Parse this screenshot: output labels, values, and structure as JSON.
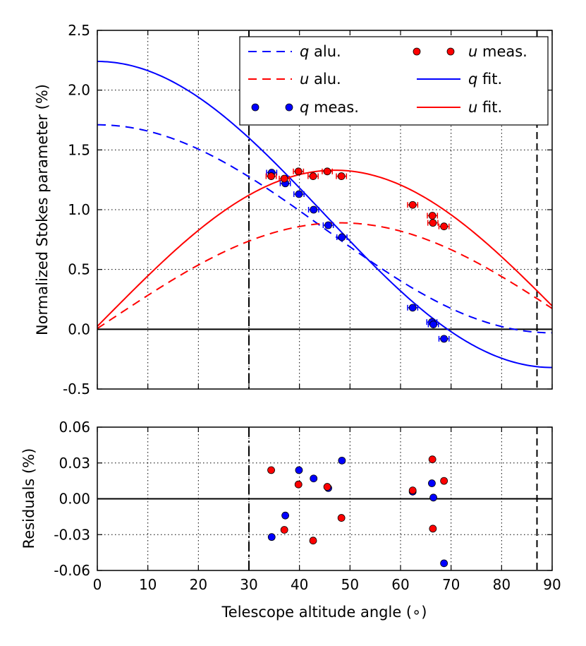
{
  "chart_data": [
    {
      "type": "line",
      "panel": "top",
      "ylabel": "Normalized Stokes parameter (%)",
      "xlim": [
        0,
        90
      ],
      "ylim": [
        -0.5,
        2.5
      ],
      "xticks": [
        0,
        10,
        20,
        30,
        40,
        50,
        60,
        70,
        80,
        90
      ],
      "yticks": [
        -0.5,
        0.0,
        0.5,
        1.0,
        1.5,
        2.0,
        2.5
      ],
      "ytick_labels": [
        "-0.5",
        "0.0",
        "0.5",
        "1.0",
        "1.5",
        "2.0",
        "2.5"
      ],
      "grid": true,
      "vlines": [
        30,
        87
      ],
      "hline": 0.0,
      "legend_position": "top-right",
      "legend": [
        {
          "sym": "q",
          "text": " alu."
        },
        {
          "sym": "u",
          "text": " alu."
        },
        {
          "sym": "q",
          "text": " meas."
        },
        {
          "sym": "u",
          "text": " meas."
        },
        {
          "sym": "q",
          "text": " fit."
        },
        {
          "sym": "u",
          "text": " fit."
        }
      ],
      "series": [
        {
          "name": "q alu.",
          "style": "dashed",
          "color": "#0000ff",
          "model": {
            "amp": 0.87,
            "freq": 2.0,
            "phase_deg": 0,
            "offset": 0.84
          }
        },
        {
          "name": "u alu.",
          "style": "dashed",
          "color": "#ff0000",
          "model": {
            "amp": 0.8,
            "freq": 2.0,
            "phase_deg": 96,
            "offset": 0.09
          }
        },
        {
          "name": "q fit.",
          "style": "solid",
          "color": "#0000ff",
          "model": {
            "amp": 1.28,
            "freq": 2.0,
            "phase_deg": 0,
            "offset": 0.96
          }
        },
        {
          "name": "u fit.",
          "style": "solid",
          "color": "#ff0000",
          "model": {
            "amp": 1.22,
            "freq": 2.0,
            "phase_deg": 94,
            "offset": 0.11
          }
        },
        {
          "name": "q meas.",
          "style": "markers",
          "color": "#0000ff",
          "x": [
            34.5,
            37.2,
            39.9,
            42.8,
            45.7,
            48.4,
            62.4,
            66.2,
            66.5,
            68.6
          ],
          "y": [
            1.31,
            1.22,
            1.13,
            1.0,
            0.87,
            0.77,
            0.18,
            0.06,
            0.04,
            -0.08
          ],
          "xerr": 1.0
        },
        {
          "name": "u meas.",
          "style": "markers",
          "color": "#ff0000",
          "x": [
            34.4,
            37.0,
            39.8,
            42.7,
            45.5,
            48.3,
            62.4,
            66.3,
            66.4,
            68.6
          ],
          "y": [
            1.28,
            1.26,
            1.32,
            1.28,
            1.32,
            1.28,
            1.04,
            0.95,
            0.89,
            0.86
          ],
          "xerr": 1.0
        }
      ]
    },
    {
      "type": "scatter",
      "panel": "bottom",
      "xlabel": "Telescope altitude angle (∘)",
      "ylabel": "Residuals (%)",
      "xlim": [
        0,
        90
      ],
      "ylim": [
        -0.06,
        0.06
      ],
      "xticks": [
        0,
        10,
        20,
        30,
        40,
        50,
        60,
        70,
        80,
        90
      ],
      "xtick_labels": [
        "0",
        "10",
        "20",
        "30",
        "40",
        "50",
        "60",
        "70",
        "80",
        "90"
      ],
      "yticks": [
        -0.06,
        -0.03,
        0.0,
        0.03,
        0.06
      ],
      "ytick_labels": [
        "-0.06",
        "-0.03",
        "0.00",
        "0.03",
        "0.06"
      ],
      "grid": true,
      "vlines": [
        30,
        87
      ],
      "hline": 0.0,
      "series": [
        {
          "name": "q residuals",
          "color": "#0000ff",
          "x": [
            34.5,
            37.2,
            39.9,
            42.8,
            45.7,
            48.4,
            62.4,
            66.2,
            66.5,
            68.6
          ],
          "y": [
            -0.032,
            -0.014,
            0.024,
            0.017,
            0.009,
            0.032,
            0.006,
            0.013,
            0.001,
            -0.054
          ]
        },
        {
          "name": "u residuals",
          "color": "#ff0000",
          "x": [
            34.4,
            37.0,
            39.8,
            42.7,
            45.5,
            48.3,
            62.4,
            66.3,
            66.4,
            68.6
          ],
          "y": [
            0.024,
            -0.026,
            0.012,
            -0.035,
            0.01,
            -0.016,
            0.007,
            0.033,
            -0.025,
            0.015
          ]
        }
      ]
    }
  ]
}
